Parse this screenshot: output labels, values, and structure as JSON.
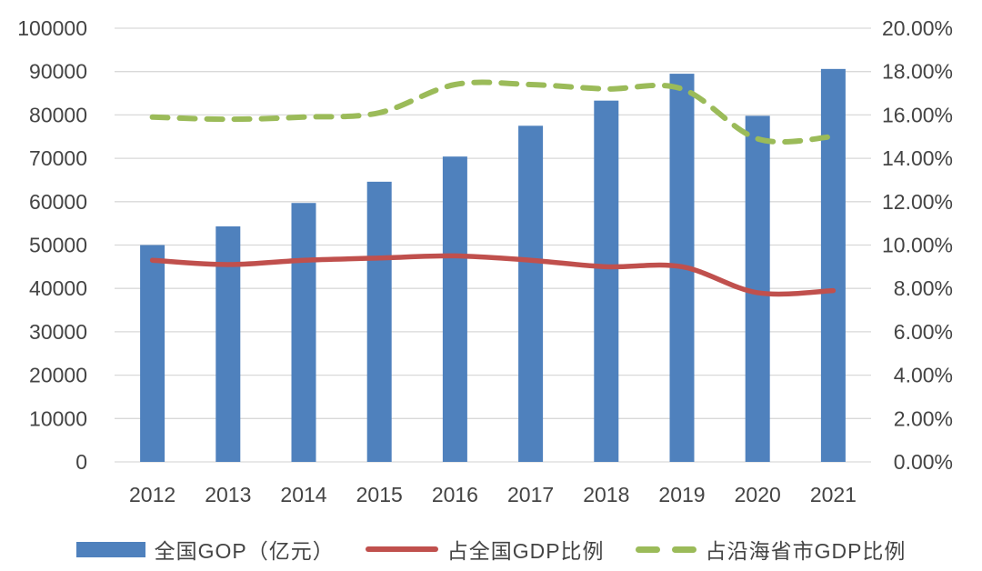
{
  "chart_data": {
    "type": "bar",
    "subtype": "combo-bar-line-dual-axis",
    "title": "",
    "categories": [
      "2012",
      "2013",
      "2014",
      "2015",
      "2016",
      "2017",
      "2018",
      "2019",
      "2020",
      "2021"
    ],
    "series": [
      {
        "name": "全国GOP（亿元）",
        "type": "bar",
        "axis": "left",
        "color": "#4F81BD",
        "values": [
          50000,
          54300,
          59700,
          64600,
          70400,
          77500,
          83300,
          89500,
          79800,
          90600
        ]
      },
      {
        "name": "占全国GDP比例",
        "type": "line",
        "line_style": "solid",
        "axis": "right",
        "color": "#C0504D",
        "values": [
          9.3,
          9.1,
          9.3,
          9.4,
          9.5,
          9.3,
          9.0,
          9.0,
          7.8,
          7.9
        ]
      },
      {
        "name": "占沿海省市GDP比例",
        "type": "line",
        "line_style": "dashed",
        "axis": "right",
        "color": "#9BBB59",
        "values": [
          15.9,
          15.8,
          15.9,
          16.1,
          17.4,
          17.4,
          17.2,
          17.2,
          14.9,
          15.0
        ]
      }
    ],
    "y_left": {
      "min": 0,
      "max": 100000,
      "step": 10000,
      "tick_labels": [
        "0",
        "10000",
        "20000",
        "30000",
        "40000",
        "50000",
        "60000",
        "70000",
        "80000",
        "90000",
        "100000"
      ]
    },
    "y_right": {
      "min": 0,
      "max": 20,
      "step": 2,
      "tick_labels": [
        "0.00%",
        "2.00%",
        "4.00%",
        "6.00%",
        "8.00%",
        "10.00%",
        "12.00%",
        "14.00%",
        "16.00%",
        "18.00%",
        "20.00%"
      ]
    },
    "grid": true,
    "legend_position": "bottom",
    "colors": {
      "gridline": "#D9D9D9",
      "axis_text": "#444444",
      "background": "#FFFFFF"
    }
  }
}
